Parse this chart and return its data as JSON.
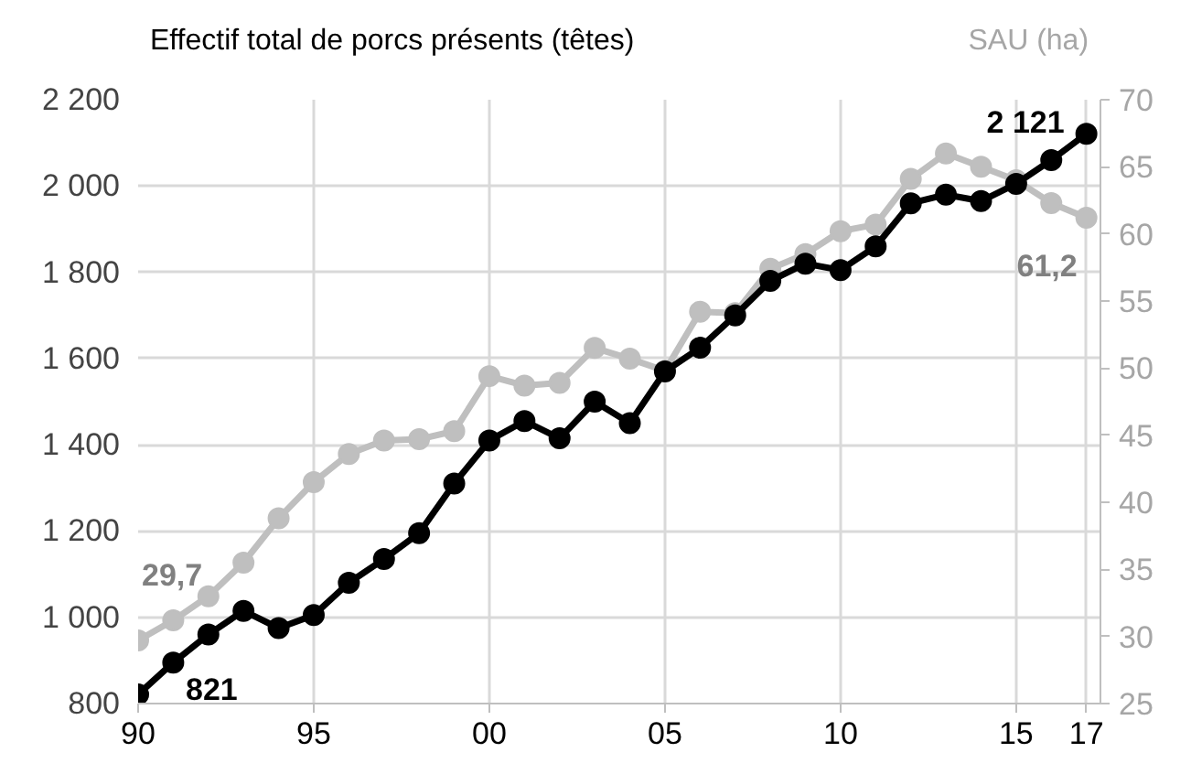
{
  "chart_data": {
    "type": "line",
    "ylabel": "Effectif total de porcs présents (têtes)",
    "y2label": "SAU (ha)",
    "x": [
      1990,
      1991,
      1992,
      1993,
      1994,
      1995,
      1996,
      1997,
      1998,
      1999,
      2000,
      2001,
      2002,
      2003,
      2004,
      2005,
      2006,
      2007,
      2008,
      2009,
      2010,
      2011,
      2012,
      2013,
      2014,
      2015,
      2016,
      2017
    ],
    "series": [
      {
        "color": "#bfbfbf",
        "axis": "y2",
        "values": [
          29.7,
          31.2,
          33,
          35.5,
          38.8,
          41.5,
          43.6,
          44.6,
          44.7,
          45.3,
          49.4,
          48.7,
          48.9,
          51.5,
          50.7,
          49.8,
          54.2,
          54.1,
          57.4,
          58.5,
          60.2,
          60.7,
          64.1,
          66,
          65,
          64,
          62.3,
          61.2
        ],
        "value_labels": [
          "29,7",
          null,
          null,
          null,
          null,
          null,
          null,
          null,
          null,
          null,
          null,
          null,
          null,
          null,
          null,
          null,
          null,
          null,
          null,
          null,
          null,
          null,
          null,
          null,
          null,
          null,
          null,
          "61,2"
        ]
      },
      {
        "color": "#000000",
        "values": [
          821,
          895,
          960,
          1015,
          975,
          1005,
          1080,
          1135,
          1195,
          1310,
          1410,
          1455,
          1415,
          1500,
          1450,
          1570,
          1625,
          1700,
          1780,
          1820,
          1805,
          1860,
          1960,
          1980,
          1965,
          2005,
          2060,
          2121
        ],
        "value_labels": [
          "821",
          null,
          null,
          null,
          null,
          null,
          null,
          null,
          null,
          null,
          null,
          null,
          null,
          null,
          null,
          null,
          null,
          null,
          null,
          null,
          null,
          null,
          null,
          null,
          null,
          null,
          null,
          "2 121"
        ]
      }
    ],
    "xlim": [
      1990,
      2017.4
    ],
    "xticks": [
      {
        "value": 1990,
        "label": "90"
      },
      {
        "value": 1995,
        "label": "95"
      },
      {
        "value": 2000,
        "label": "00"
      },
      {
        "value": 2005,
        "label": "05"
      },
      {
        "value": 2010,
        "label": "10"
      },
      {
        "value": 2015,
        "label": "15"
      },
      {
        "value": 2017,
        "label": "17"
      }
    ],
    "ylim": [
      800,
      2200
    ],
    "yticks": [
      {
        "value": 800,
        "label": "800"
      },
      {
        "value": 1000,
        "label": "1 000"
      },
      {
        "value": 1200,
        "label": "1 200"
      },
      {
        "value": 1400,
        "label": "1 400"
      },
      {
        "value": 1600,
        "label": "1 600"
      },
      {
        "value": 1800,
        "label": "1 800"
      },
      {
        "value": 2000,
        "label": "2 000"
      },
      {
        "value": 2200,
        "label": "2 200"
      }
    ],
    "y2lim": [
      25,
      70
    ],
    "y2ticks": [
      25,
      30,
      35,
      40,
      45,
      50,
      55,
      60,
      65,
      70
    ],
    "grid": true,
    "marker": "circle",
    "line_style": "solid"
  }
}
